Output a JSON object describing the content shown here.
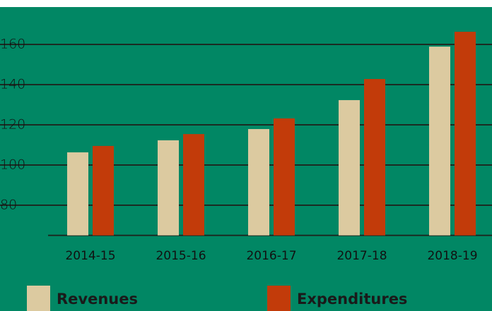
{
  "chart_data": {
    "type": "bar",
    "categories": [
      "2014-15",
      "2015-16",
      "2016-17",
      "2017-18",
      "2018-19"
    ],
    "series": [
      {
        "name": "Revenues",
        "color": "#dccaa0",
        "values": [
          106.3,
          112.3,
          117.9,
          132.3,
          158.9
        ]
      },
      {
        "name": "Expenditures",
        "color": "#c23b0a",
        "values": [
          109.5,
          115.4,
          123.2,
          142.8,
          166.3
        ]
      }
    ],
    "ylim": [
      65,
      170
    ],
    "yticks": [
      80,
      100,
      120,
      140,
      160
    ],
    "grid": true
  }
}
